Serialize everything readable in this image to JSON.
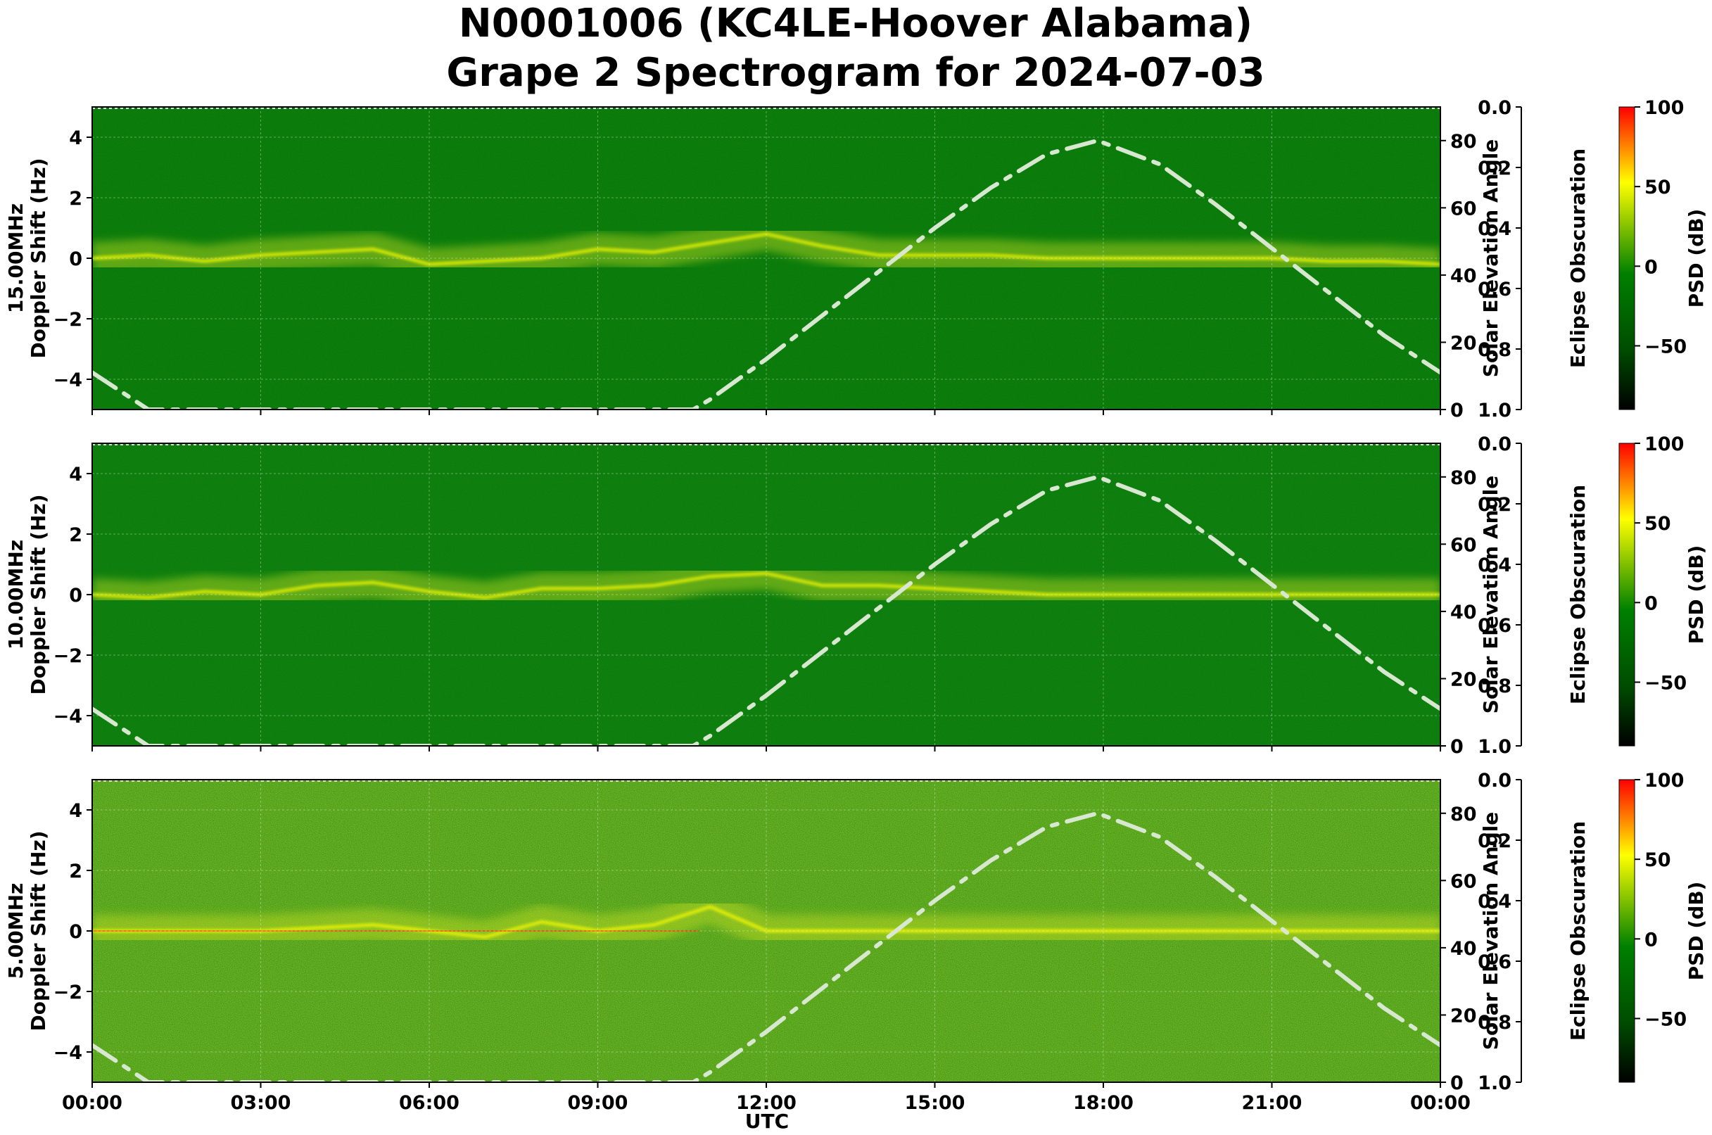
{
  "title": {
    "line1": "N0001006 (KC4LE-Hoover Alabama)",
    "line2": "Grape 2 Spectrogram for 2024-07-03"
  },
  "colors": {
    "background_15": "#0a7a0a",
    "background_10": "#0d7d0d",
    "background_5": "#4a9e1a",
    "signal": "#ffff00",
    "hot": "#ff2000",
    "solar_curve": "#d8e8d0"
  },
  "x_axis": {
    "label": "UTC",
    "ticks": [
      "00:00",
      "03:00",
      "06:00",
      "09:00",
      "12:00",
      "15:00",
      "18:00",
      "21:00",
      "00:00"
    ],
    "range_hours": [
      0,
      24
    ]
  },
  "colorbar": {
    "label": "PSD (dB)",
    "ticks": [
      "100",
      "50",
      "0",
      "−50"
    ],
    "range": [
      -90,
      100
    ]
  },
  "eclipse_axis": {
    "label": "Eclipse Obscuration",
    "ticks": [
      "0.0",
      "0.2",
      "0.4",
      "0.6",
      "0.8",
      "1.0"
    ],
    "range": [
      0,
      1
    ]
  },
  "solar_axis": {
    "label": "Solar Elevation Angle",
    "ticks": [
      "0",
      "20",
      "40",
      "60",
      "80"
    ],
    "range": [
      0,
      90
    ]
  },
  "panels": [
    {
      "freq_label": "15.00MHz",
      "ylabel": "Doppler Shift (Hz)"
    },
    {
      "freq_label": "10.00MHz",
      "ylabel": "Doppler Shift (Hz)"
    },
    {
      "freq_label": "5.00MHz",
      "ylabel": "Doppler Shift (Hz)"
    }
  ],
  "chart_data": {
    "type": "heatmap",
    "title": "N0001006 (KC4LE-Hoover Alabama) Grape 2 Spectrogram for 2024-07-03",
    "xlabel": "UTC",
    "x_ticks": [
      "00:00",
      "03:00",
      "06:00",
      "09:00",
      "12:00",
      "15:00",
      "18:00",
      "21:00",
      "00:00"
    ],
    "ylabel": "Doppler Shift (Hz)",
    "ylim": [
      -5,
      5
    ],
    "y_ticks": [
      -4,
      -2,
      0,
      2,
      4
    ],
    "secondary_y": {
      "label": "Solar Elevation Angle",
      "ylim": [
        0,
        90
      ],
      "ticks": [
        0,
        20,
        40,
        60,
        80
      ]
    },
    "colorbar": {
      "label": "PSD (dB)",
      "range": [
        -90,
        100
      ],
      "ticks": [
        100,
        50,
        0,
        -50
      ]
    },
    "panels": [
      "15.00MHz",
      "10.00MHz",
      "5.00MHz"
    ],
    "solar_elevation_curve": {
      "hours": [
        0,
        1,
        2,
        3,
        4,
        5,
        6,
        7,
        8,
        9,
        10,
        10.7,
        11,
        12,
        13,
        14,
        15,
        16,
        17,
        17.9,
        19,
        20,
        21,
        22,
        23,
        24
      ],
      "degrees": [
        11,
        0,
        0,
        0,
        0,
        0,
        0,
        0,
        0,
        0,
        0,
        0,
        3,
        15,
        28,
        41,
        54,
        66,
        76,
        80,
        73,
        61,
        48,
        35,
        22,
        11
      ]
    },
    "doppler_trace_hz": {
      "hours": [
        0,
        1,
        2,
        3,
        4,
        5,
        6,
        7,
        8,
        9,
        10,
        11,
        12,
        13,
        14,
        15,
        16,
        17,
        18,
        19,
        20,
        21,
        22,
        23,
        24
      ],
      "15.00MHz": [
        0,
        0.1,
        -0.1,
        0.1,
        0.2,
        0.3,
        -0.2,
        -0.1,
        0,
        0.3,
        0.2,
        0.5,
        0.8,
        0.4,
        0.1,
        0.1,
        0.1,
        0,
        0,
        0,
        0,
        0,
        -0.1,
        -0.1,
        -0.2
      ],
      "10.00MHz": [
        0,
        -0.1,
        0.1,
        0,
        0.3,
        0.4,
        0.1,
        -0.1,
        0.2,
        0.2,
        0.3,
        0.6,
        0.7,
        0.3,
        0.3,
        0.2,
        0.1,
        0,
        0,
        0,
        0,
        0,
        0,
        0,
        0
      ],
      "5.00MHz": [
        0,
        0,
        0,
        0,
        0.1,
        0.2,
        0,
        -0.2,
        0.3,
        0,
        0.2,
        0.8,
        0,
        0,
        0,
        0,
        0,
        0,
        0,
        0,
        0,
        0,
        0,
        0,
        0
      ]
    }
  }
}
